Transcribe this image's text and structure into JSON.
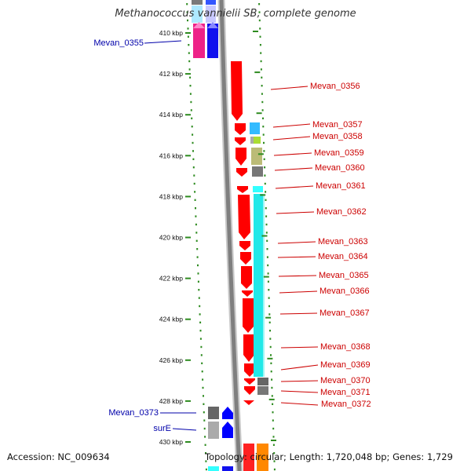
{
  "title": "Methanococcus vannielii SB, complete genome",
  "accession": "Accession: NC_009634",
  "summary": "Topology: circular; Length: 1,720,048 bp; Genes: 1,729",
  "axis": {
    "unit": "kbp",
    "ticks": [
      {
        "kbp": 410,
        "label": "410 kbp"
      },
      {
        "kbp": 412,
        "label": "412 kbp"
      },
      {
        "kbp": 414,
        "label": "414 kbp"
      },
      {
        "kbp": 416,
        "label": "416 kbp"
      },
      {
        "kbp": 418,
        "label": "418 kbp"
      },
      {
        "kbp": 420,
        "label": "420 kbp"
      },
      {
        "kbp": 422,
        "label": "422 kbp"
      },
      {
        "kbp": 424,
        "label": "424 kbp"
      },
      {
        "kbp": 426,
        "label": "426 kbp"
      },
      {
        "kbp": 428,
        "label": "428 kbp"
      },
      {
        "kbp": 430,
        "label": "430 kbp"
      }
    ]
  },
  "colors": {
    "forward_label": "#cc0000",
    "reverse_label": "#0000aa",
    "forward_cds": "#ff0000",
    "reverse_cds": "#0000ff",
    "tick_dots": "#2e8b20",
    "backbone": "#888888"
  },
  "genes": [
    {
      "label": "Mevan_0355",
      "strand": "reverse"
    },
    {
      "label": "Mevan_0356",
      "strand": "forward"
    },
    {
      "label": "Mevan_0357",
      "strand": "forward"
    },
    {
      "label": "Mevan_0358",
      "strand": "forward"
    },
    {
      "label": "Mevan_0359",
      "strand": "forward"
    },
    {
      "label": "Mevan_0360",
      "strand": "forward"
    },
    {
      "label": "Mevan_0361",
      "strand": "forward"
    },
    {
      "label": "Mevan_0362",
      "strand": "forward"
    },
    {
      "label": "Mevan_0363",
      "strand": "forward"
    },
    {
      "label": "Mevan_0364",
      "strand": "forward"
    },
    {
      "label": "Mevan_0365",
      "strand": "forward"
    },
    {
      "label": "Mevan_0366",
      "strand": "forward"
    },
    {
      "label": "Mevan_0367",
      "strand": "forward"
    },
    {
      "label": "Mevan_0368",
      "strand": "forward"
    },
    {
      "label": "Mevan_0369",
      "strand": "forward"
    },
    {
      "label": "Mevan_0370",
      "strand": "forward"
    },
    {
      "label": "Mevan_0371",
      "strand": "forward"
    },
    {
      "label": "Mevan_0372",
      "strand": "forward"
    },
    {
      "label": "Mevan_0373",
      "strand": "reverse"
    },
    {
      "label": "surE",
      "strand": "reverse"
    }
  ]
}
